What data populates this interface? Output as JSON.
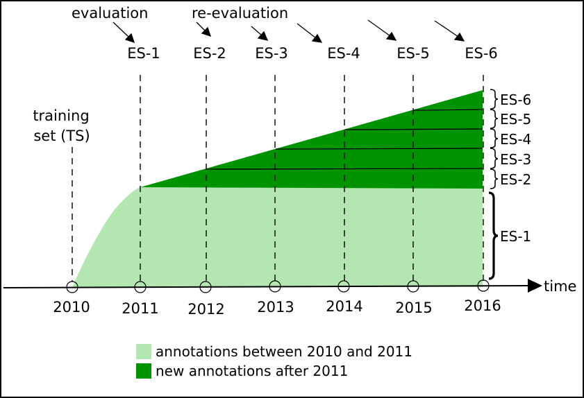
{
  "colors": {
    "old_annotations": "#b3e6b0",
    "new_annotations": "#009300",
    "line": "#000000",
    "background": "#ffffff"
  },
  "labels": {
    "evaluation": "evaluation",
    "re_evaluation": "re-evaluation",
    "training_set_line1": "training",
    "training_set_line2": "set (TS)",
    "time": "time"
  },
  "years": [
    "2010",
    "2011",
    "2012",
    "2013",
    "2014",
    "2015",
    "2016"
  ],
  "top_sets": [
    "ES-1",
    "ES-2",
    "ES-3",
    "ES-4",
    "ES-5",
    "ES-6"
  ],
  "brace_sets": [
    "ES-6",
    "ES-5",
    "ES-4",
    "ES-3",
    "ES-2",
    "ES-1"
  ],
  "legend": [
    {
      "label": "annotations between 2010 and 2011",
      "color": "#b3e6b0"
    },
    {
      "label": "new annotations after 2011",
      "color": "#009300"
    }
  ]
}
